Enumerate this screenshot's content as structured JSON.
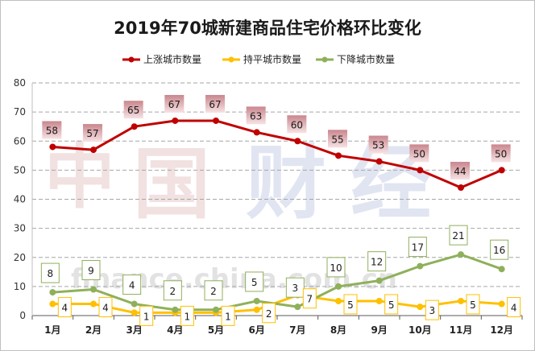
{
  "chart_data": {
    "type": "line",
    "title": "2019年70城新建商品住宅价格环比变化",
    "categories": [
      "1月",
      "2月",
      "3月",
      "4月",
      "5月",
      "6月",
      "7月",
      "8月",
      "9月",
      "10月",
      "11月",
      "12月"
    ],
    "series": [
      {
        "name": "上涨城市数量",
        "color": "#c00000",
        "values": [
          58,
          57,
          65,
          67,
          67,
          63,
          60,
          55,
          53,
          50,
          44,
          50
        ]
      },
      {
        "name": "持平城市数量",
        "color": "#ffc000",
        "values": [
          4,
          4,
          1,
          1,
          1,
          2,
          7,
          5,
          5,
          3,
          5,
          4
        ]
      },
      {
        "name": "下降城市数量",
        "color": "#8fb05a",
        "values": [
          8,
          9,
          4,
          2,
          2,
          5,
          3,
          10,
          12,
          17,
          21,
          16
        ]
      }
    ],
    "ylim": [
      0,
      80
    ],
    "yticks": [
      0,
      10,
      20,
      30,
      40,
      50,
      60,
      70,
      80
    ],
    "grid": true,
    "legend_position": "top"
  },
  "watermark": {
    "chars": [
      "中",
      "国",
      "财",
      "经"
    ],
    "url": "finance.china.com.cn"
  }
}
